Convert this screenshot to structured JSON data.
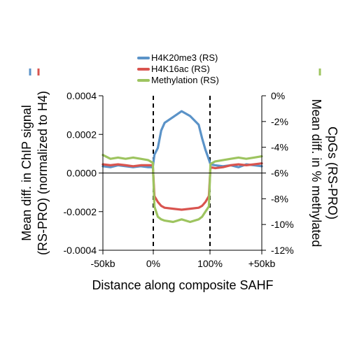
{
  "chart_data": {
    "type": "line",
    "xlabel": "Distance along composite SAHF",
    "x_ticks": [
      "-50kb",
      "0%",
      "100%",
      "+50kb"
    ],
    "dashed_lines_at": [
      "0%",
      "100%"
    ],
    "left_axis": {
      "label_lines": [
        "Mean diff. in ChIP signal",
        "(RS-PRO) (normalized to H4)"
      ],
      "ylim": [
        -0.0004,
        0.0004
      ],
      "ticks": [
        "0.0004",
        "0.0002",
        "0.0000",
        "-0.0002",
        "-0.0004"
      ],
      "tick_values": [
        0.0004,
        0.0002,
        0.0,
        -0.0002,
        -0.0004
      ]
    },
    "right_axis": {
      "label_lines": [
        "Mean diff. in % methylated",
        "CpGs (RS-PRO)"
      ],
      "ylim": [
        -12,
        0
      ],
      "ticks": [
        "0%",
        "-2%",
        "-4%",
        "-6%",
        "-8%",
        "-10%",
        "-12%"
      ],
      "tick_values": [
        0,
        -2,
        -4,
        -6,
        -8,
        -10,
        -12
      ]
    },
    "legend_placement": "top-center",
    "x_segments": [
      "-50kb to 0%",
      "0% to 100%",
      "100% to +50kb"
    ],
    "series": [
      {
        "name": "H4K20me3 (RS)",
        "color": "#5b93c8",
        "axis": "left",
        "x": [
          0,
          5,
          10,
          15,
          20,
          25,
          30,
          33,
          34,
          36,
          38,
          40,
          45,
          50,
          55,
          60,
          62,
          64,
          66,
          67,
          70,
          75,
          80,
          85,
          90,
          95,
          100
        ],
        "y": [
          3.5e-05,
          3e-05,
          4e-05,
          3.5e-05,
          3e-05,
          3.5e-05,
          3e-05,
          3e-05,
          9.5e-05,
          0.00013,
          0.00022,
          0.00026,
          0.00029,
          0.00032,
          0.000295,
          0.00025,
          0.00018,
          0.00012,
          7e-05,
          4.5e-05,
          4e-05,
          3.5e-05,
          4e-05,
          3e-05,
          4.5e-05,
          4e-05,
          3.5e-05
        ]
      },
      {
        "name": "H4K16ac (RS)",
        "color": "#d9544f",
        "axis": "left",
        "x": [
          0,
          5,
          10,
          15,
          20,
          25,
          30,
          33,
          34,
          36,
          38,
          40,
          45,
          50,
          55,
          60,
          62,
          64,
          66,
          67,
          70,
          75,
          80,
          85,
          90,
          95,
          100
        ],
        "y": [
          4.5e-05,
          4e-05,
          4.5e-05,
          4e-05,
          3.5e-05,
          4e-05,
          4e-05,
          4e-05,
          -0.00012,
          -0.00015,
          -0.00017,
          -0.00018,
          -0.000185,
          -0.00019,
          -0.000185,
          -0.00018,
          -0.00017,
          -0.00015,
          -0.00012,
          3e-05,
          2.5e-05,
          3e-05,
          4e-05,
          4.5e-05,
          4e-05,
          4.5e-05,
          5e-05
        ]
      },
      {
        "name": "Methylation (RS)",
        "color": "#9dc45f",
        "axis": "right",
        "x": [
          0,
          5,
          10,
          15,
          20,
          25,
          30,
          33,
          34,
          36,
          38,
          40,
          45,
          50,
          55,
          60,
          62,
          64,
          66,
          67,
          70,
          75,
          80,
          85,
          90,
          95,
          100
        ],
        "y": [
          -4.6,
          -4.9,
          -4.8,
          -4.9,
          -4.8,
          -4.9,
          -5.0,
          -5.2,
          -8.6,
          -9.4,
          -9.6,
          -9.7,
          -9.8,
          -9.6,
          -9.8,
          -9.6,
          -9.4,
          -9.0,
          -8.6,
          -5.3,
          -5.1,
          -5.0,
          -4.9,
          -4.8,
          -4.9,
          -4.8,
          -4.7
        ]
      }
    ]
  }
}
